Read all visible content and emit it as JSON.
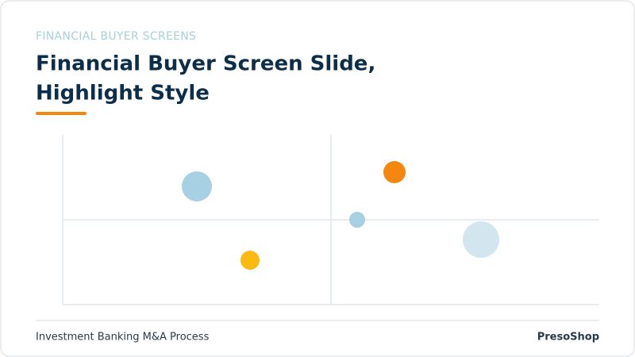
{
  "header": {
    "eyebrow": "FINANCIAL BUYER SCREENS",
    "title_lines": [
      "Financial Buyer Screen Slide,",
      "Highlight Style"
    ]
  },
  "footer": {
    "left": "Investment Banking M&A Process",
    "right": "PresoShop"
  }
}
